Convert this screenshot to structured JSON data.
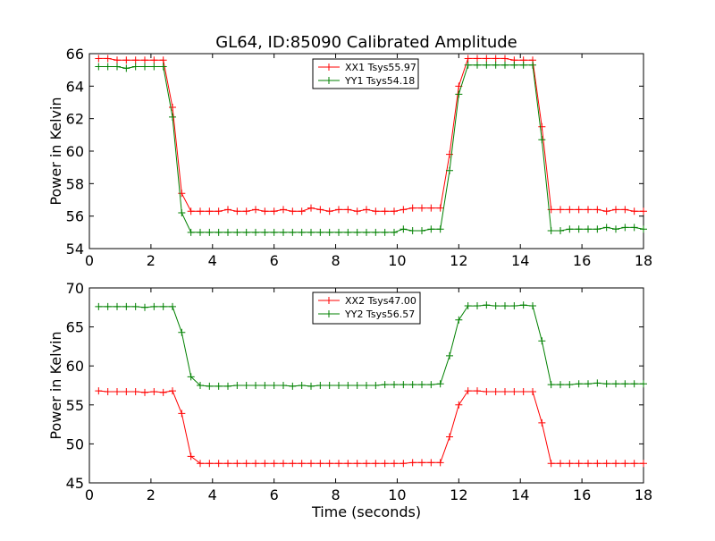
{
  "figure": {
    "title": "GL64, ID:85090 Calibrated Amplitude"
  },
  "chart_data": [
    {
      "type": "line",
      "title": "GL64, ID:85090 Calibrated Amplitude",
      "xlabel": "",
      "ylabel": "Power in Kelvin",
      "xlim": [
        0,
        18
      ],
      "ylim": [
        54,
        66
      ],
      "x_ticks": [
        "0",
        "2",
        "4",
        "6",
        "8",
        "10",
        "12",
        "14",
        "16",
        "18"
      ],
      "y_ticks": [
        "54",
        "56",
        "58",
        "60",
        "62",
        "64",
        "66"
      ],
      "legend": "top-center",
      "x": [
        0.3,
        0.6,
        0.9,
        1.2,
        1.5,
        1.8,
        2.1,
        2.4,
        2.7,
        3.0,
        3.3,
        3.6,
        3.9,
        4.2,
        4.5,
        4.8,
        5.1,
        5.4,
        5.7,
        6.0,
        6.3,
        6.6,
        6.9,
        7.2,
        7.5,
        7.8,
        8.1,
        8.4,
        8.7,
        9.0,
        9.3,
        9.6,
        9.9,
        10.2,
        10.5,
        10.8,
        11.1,
        11.4,
        11.7,
        12.0,
        12.3,
        12.6,
        12.9,
        13.2,
        13.5,
        13.8,
        14.1,
        14.4,
        14.7,
        15.0,
        15.3,
        15.6,
        15.9,
        16.2,
        16.5,
        16.8,
        17.1,
        17.4,
        17.7,
        18.0
      ],
      "series": [
        {
          "name": "XX1 Tsys55.97",
          "color": "#ff0000",
          "values": [
            65.7,
            65.7,
            65.6,
            65.6,
            65.6,
            65.6,
            65.6,
            65.6,
            62.7,
            57.4,
            56.3,
            56.3,
            56.3,
            56.3,
            56.4,
            56.3,
            56.3,
            56.4,
            56.3,
            56.3,
            56.4,
            56.3,
            56.3,
            56.5,
            56.4,
            56.3,
            56.4,
            56.4,
            56.3,
            56.4,
            56.3,
            56.3,
            56.3,
            56.4,
            56.5,
            56.5,
            56.5,
            56.5,
            59.8,
            64.0,
            65.7,
            65.7,
            65.7,
            65.7,
            65.7,
            65.6,
            65.6,
            65.6,
            61.5,
            56.4,
            56.4,
            56.4,
            56.4,
            56.4,
            56.4,
            56.3,
            56.4,
            56.4,
            56.3,
            56.3
          ]
        },
        {
          "name": "YY1 Tsys54.18",
          "color": "#008000",
          "values": [
            65.2,
            65.2,
            65.2,
            65.1,
            65.2,
            65.2,
            65.2,
            65.2,
            62.1,
            56.2,
            55.0,
            55.0,
            55.0,
            55.0,
            55.0,
            55.0,
            55.0,
            55.0,
            55.0,
            55.0,
            55.0,
            55.0,
            55.0,
            55.0,
            55.0,
            55.0,
            55.0,
            55.0,
            55.0,
            55.0,
            55.0,
            55.0,
            55.0,
            55.2,
            55.1,
            55.1,
            55.2,
            55.2,
            58.8,
            63.5,
            65.3,
            65.3,
            65.3,
            65.3,
            65.3,
            65.3,
            65.3,
            65.3,
            60.7,
            55.1,
            55.1,
            55.2,
            55.2,
            55.2,
            55.2,
            55.3,
            55.2,
            55.3,
            55.3,
            55.2
          ]
        }
      ]
    },
    {
      "type": "line",
      "title": "",
      "xlabel": "Time (seconds)",
      "ylabel": "Power in Kelvin",
      "xlim": [
        0,
        18
      ],
      "ylim": [
        45,
        70
      ],
      "x_ticks": [
        "0",
        "2",
        "4",
        "6",
        "8",
        "10",
        "12",
        "14",
        "16",
        "18"
      ],
      "y_ticks": [
        "45",
        "50",
        "55",
        "60",
        "65",
        "70"
      ],
      "legend": "top-center",
      "x": [
        0.3,
        0.6,
        0.9,
        1.2,
        1.5,
        1.8,
        2.1,
        2.4,
        2.7,
        3.0,
        3.3,
        3.6,
        3.9,
        4.2,
        4.5,
        4.8,
        5.1,
        5.4,
        5.7,
        6.0,
        6.3,
        6.6,
        6.9,
        7.2,
        7.5,
        7.8,
        8.1,
        8.4,
        8.7,
        9.0,
        9.3,
        9.6,
        9.9,
        10.2,
        10.5,
        10.8,
        11.1,
        11.4,
        11.7,
        12.0,
        12.3,
        12.6,
        12.9,
        13.2,
        13.5,
        13.8,
        14.1,
        14.4,
        14.7,
        15.0,
        15.3,
        15.6,
        15.9,
        16.2,
        16.5,
        16.8,
        17.1,
        17.4,
        17.7,
        18.0
      ],
      "series": [
        {
          "name": "XX2 Tsys47.00",
          "color": "#ff0000",
          "values": [
            56.8,
            56.7,
            56.7,
            56.7,
            56.7,
            56.6,
            56.7,
            56.6,
            56.8,
            53.9,
            48.4,
            47.5,
            47.5,
            47.5,
            47.5,
            47.5,
            47.5,
            47.5,
            47.5,
            47.5,
            47.5,
            47.5,
            47.5,
            47.5,
            47.5,
            47.5,
            47.5,
            47.5,
            47.5,
            47.5,
            47.5,
            47.5,
            47.5,
            47.5,
            47.6,
            47.6,
            47.6,
            47.6,
            50.9,
            55.0,
            56.8,
            56.8,
            56.7,
            56.7,
            56.7,
            56.7,
            56.7,
            56.7,
            52.7,
            47.5,
            47.5,
            47.5,
            47.5,
            47.5,
            47.5,
            47.5,
            47.5,
            47.5,
            47.5,
            47.5
          ]
        },
        {
          "name": "YY2 Tsys56.57",
          "color": "#008000",
          "values": [
            67.6,
            67.6,
            67.6,
            67.6,
            67.6,
            67.5,
            67.6,
            67.6,
            67.6,
            64.3,
            58.6,
            57.5,
            57.4,
            57.4,
            57.4,
            57.5,
            57.5,
            57.5,
            57.5,
            57.5,
            57.5,
            57.4,
            57.5,
            57.4,
            57.5,
            57.5,
            57.5,
            57.5,
            57.5,
            57.5,
            57.5,
            57.6,
            57.6,
            57.6,
            57.6,
            57.6,
            57.6,
            57.7,
            61.3,
            65.9,
            67.7,
            67.7,
            67.8,
            67.7,
            67.7,
            67.7,
            67.8,
            67.7,
            63.2,
            57.6,
            57.6,
            57.6,
            57.7,
            57.7,
            57.8,
            57.7,
            57.7,
            57.7,
            57.7,
            57.7
          ]
        }
      ]
    }
  ]
}
